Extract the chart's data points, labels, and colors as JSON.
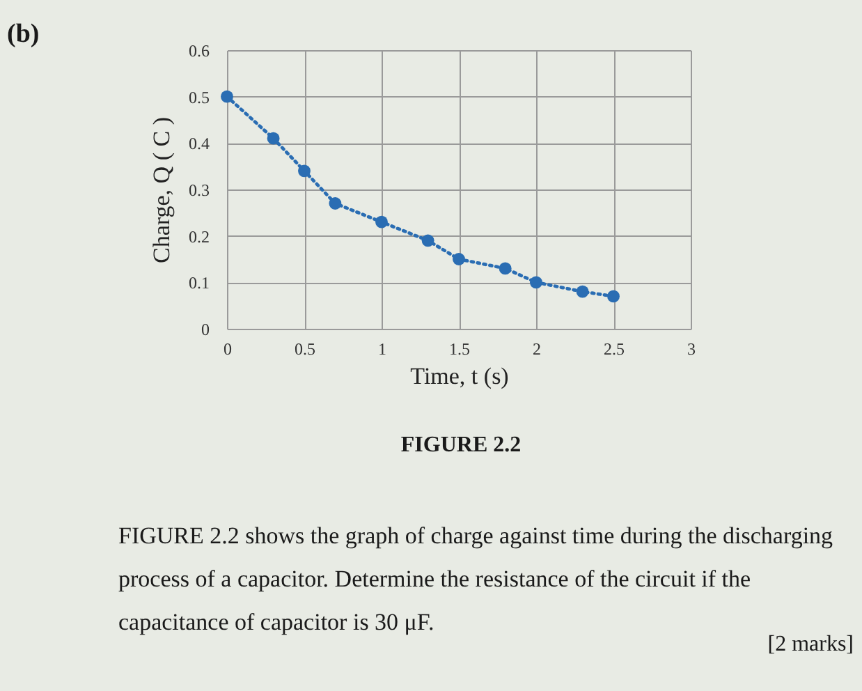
{
  "chart_data": {
    "type": "line",
    "xlabel": "Time, t (s)",
    "ylabel": "Charge, Q ( C )",
    "x": [
      0,
      0.3,
      0.5,
      0.7,
      1.0,
      1.3,
      1.5,
      1.8,
      2.0,
      2.3,
      2.5
    ],
    "series": [
      {
        "color": "#2a6db3",
        "values": [
          0.5,
          0.41,
          0.34,
          0.27,
          0.23,
          0.19,
          0.15,
          0.13,
          0.1,
          0.08,
          0.07
        ]
      }
    ],
    "xlim": [
      0,
      3
    ],
    "xticks": [
      0,
      0.5,
      1,
      1.5,
      2,
      2.5,
      3
    ],
    "ylim": [
      0,
      0.6
    ],
    "yticks": [
      0,
      0.1,
      0.2,
      0.3,
      0.4,
      0.5,
      0.6
    ],
    "grid": true,
    "marker": "circle",
    "line_style": "dotted",
    "annotations": [
      "(b)",
      "FIGURE 2.2",
      "FIGURE 2.2 shows the graph of charge against time during the discharging process of a capacitor. Determine the resistance of the circuit if the capacitance of capacitor is 30 μF.",
      "[2 marks]"
    ]
  }
}
